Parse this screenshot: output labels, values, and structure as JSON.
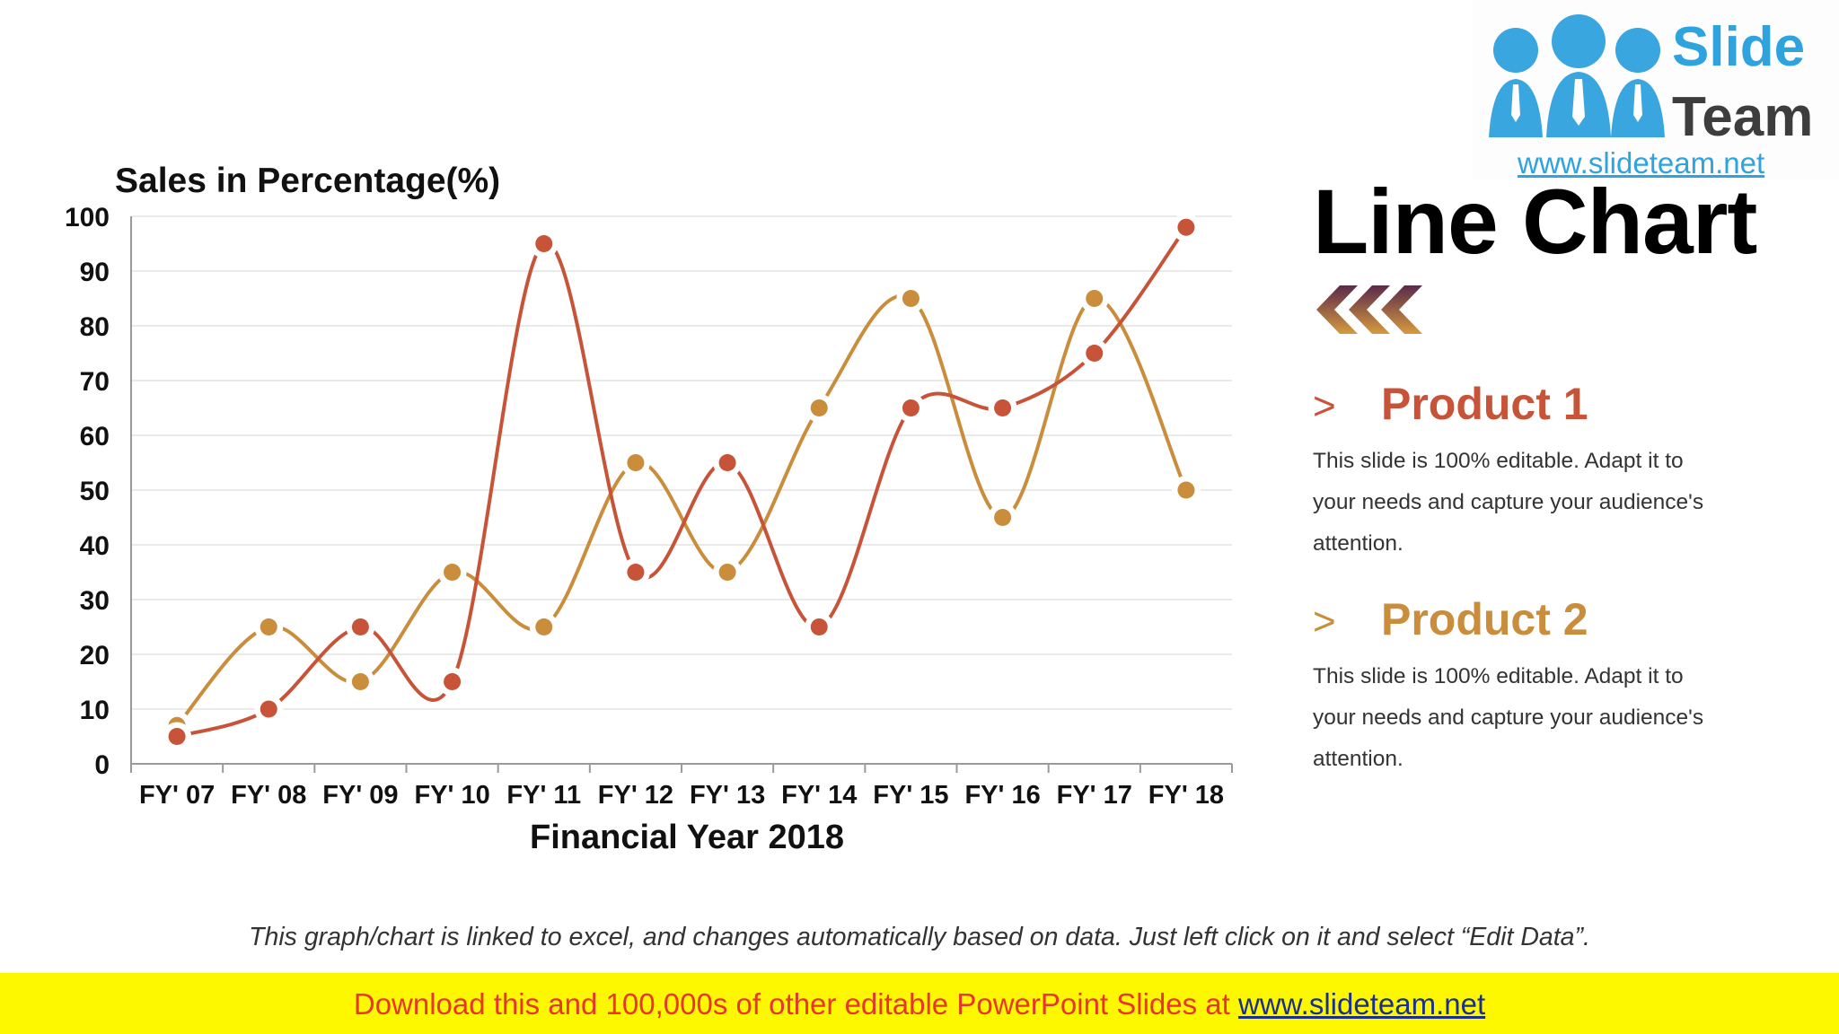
{
  "colors": {
    "product1": "#c75438",
    "product2": "#c98d3b",
    "grid": "#e3e3e3",
    "axis": "#9a9a9a",
    "banner_bg": "#fdf800",
    "banner_text": "#e8362c",
    "logo_blue": "#2fa3de"
  },
  "logo": {
    "word1": "Slide",
    "word2": "Team",
    "url": "www.slideteam.net",
    "icon": "three-people-icon"
  },
  "title": "Line Chart",
  "title_icon": "triple-chevron-left-icon",
  "legend": [
    {
      "marker": ">",
      "name": "Product 1",
      "description": "This slide is 100% editable. Adapt it to your needs and capture your audience's attention."
    },
    {
      "marker": ">",
      "name": "Product 2",
      "description": "This slide is 100% editable. Adapt it to your needs and capture your audience's attention."
    }
  ],
  "chart_data": {
    "type": "line",
    "title": "",
    "ylabel": "Sales in Percentage(%)",
    "xlabel": "Financial Year 2018",
    "categories": [
      "FY' 07",
      "FY' 08",
      "FY' 09",
      "FY' 10",
      "FY' 11",
      "FY' 12",
      "FY' 13",
      "FY' 14",
      "FY' 15",
      "FY' 16",
      "FY' 17",
      "FY' 18"
    ],
    "ylim": [
      0,
      100
    ],
    "yticks": [
      0,
      10,
      20,
      30,
      40,
      50,
      60,
      70,
      80,
      90,
      100
    ],
    "grid": true,
    "smooth": true,
    "series": [
      {
        "name": "Product 1",
        "values": [
          5,
          10,
          25,
          15,
          95,
          35,
          55,
          25,
          65,
          65,
          75,
          98
        ]
      },
      {
        "name": "Product 2",
        "values": [
          7,
          25,
          15,
          35,
          25,
          55,
          35,
          65,
          85,
          45,
          85,
          50
        ]
      }
    ]
  },
  "footnote": "This graph/chart is linked to excel, and changes automatically based on data. Just left click on it and select “Edit Data”.",
  "banner": {
    "text": "Download this and 100,000s of other editable PowerPoint Slides at ",
    "link": "www.slideteam.net"
  }
}
